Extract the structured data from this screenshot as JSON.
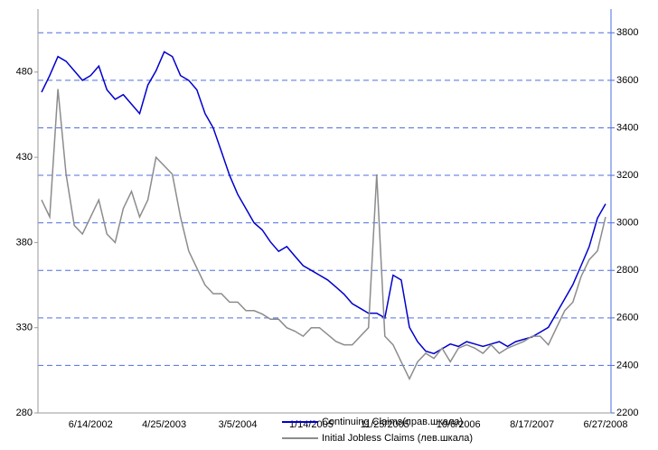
{
  "chart_data": {
    "type": "line",
    "categories": [
      null,
      null,
      null,
      null,
      null,
      null,
      "6/14/2002",
      null,
      null,
      null,
      null,
      null,
      null,
      null,
      null,
      "4/25/2003",
      null,
      null,
      null,
      null,
      null,
      null,
      null,
      null,
      "3/5/2004",
      null,
      null,
      null,
      null,
      null,
      null,
      null,
      null,
      "1/14/2005",
      null,
      null,
      null,
      null,
      null,
      null,
      null,
      null,
      "11/25/2005",
      null,
      null,
      null,
      null,
      null,
      null,
      null,
      null,
      "10/6/2006",
      null,
      null,
      null,
      null,
      null,
      null,
      null,
      null,
      "8/17/2007",
      null,
      null,
      null,
      null,
      null,
      null,
      null,
      null,
      "6/27/2008"
    ],
    "series": [
      {
        "name": "Continuing Claims(прав.шкала)",
        "color": "#0000cc",
        "axis": "y2",
        "values": [
          3550,
          3620,
          3700,
          3680,
          3640,
          3600,
          3620,
          3660,
          3560,
          3520,
          3540,
          3500,
          3460,
          3580,
          3640,
          3720,
          3700,
          3620,
          3600,
          3560,
          3460,
          3400,
          3300,
          3200,
          3120,
          3060,
          3000,
          2970,
          2920,
          2880,
          2900,
          2860,
          2820,
          2800,
          2780,
          2760,
          2730,
          2700,
          2660,
          2640,
          2620,
          2620,
          2600,
          2780,
          2760,
          2560,
          2500,
          2460,
          2450,
          2470,
          2490,
          2480,
          2500,
          2490,
          2480,
          2490,
          2500,
          2480,
          2500,
          2510,
          2520,
          2540,
          2560,
          2620,
          2680,
          2740,
          2820,
          2900,
          3020,
          3080
        ]
      },
      {
        "name": "Initial Jobless Claims (лев.шкала)",
        "color": "#8c8c8c",
        "axis": "y",
        "values": [
          405,
          395,
          470,
          420,
          390,
          385,
          395,
          405,
          385,
          380,
          400,
          410,
          395,
          405,
          430,
          425,
          420,
          395,
          375,
          365,
          355,
          350,
          350,
          345,
          345,
          340,
          340,
          338,
          335,
          335,
          330,
          328,
          325,
          330,
          330,
          326,
          322,
          320,
          320,
          325,
          330,
          420,
          325,
          320,
          310,
          300,
          310,
          315,
          312,
          318,
          310,
          318,
          320,
          318,
          315,
          320,
          315,
          318,
          320,
          322,
          325,
          325,
          320,
          330,
          340,
          345,
          360,
          370,
          375,
          395
        ]
      }
    ],
    "ylim": [
      280,
      517
    ],
    "yticks": [
      280,
      330,
      380,
      430,
      480
    ],
    "y2lim": [
      2200,
      3900
    ],
    "y2ticks": [
      2200,
      2400,
      2600,
      2800,
      3000,
      3200,
      3400,
      3600,
      3800
    ],
    "grid": "y2"
  }
}
